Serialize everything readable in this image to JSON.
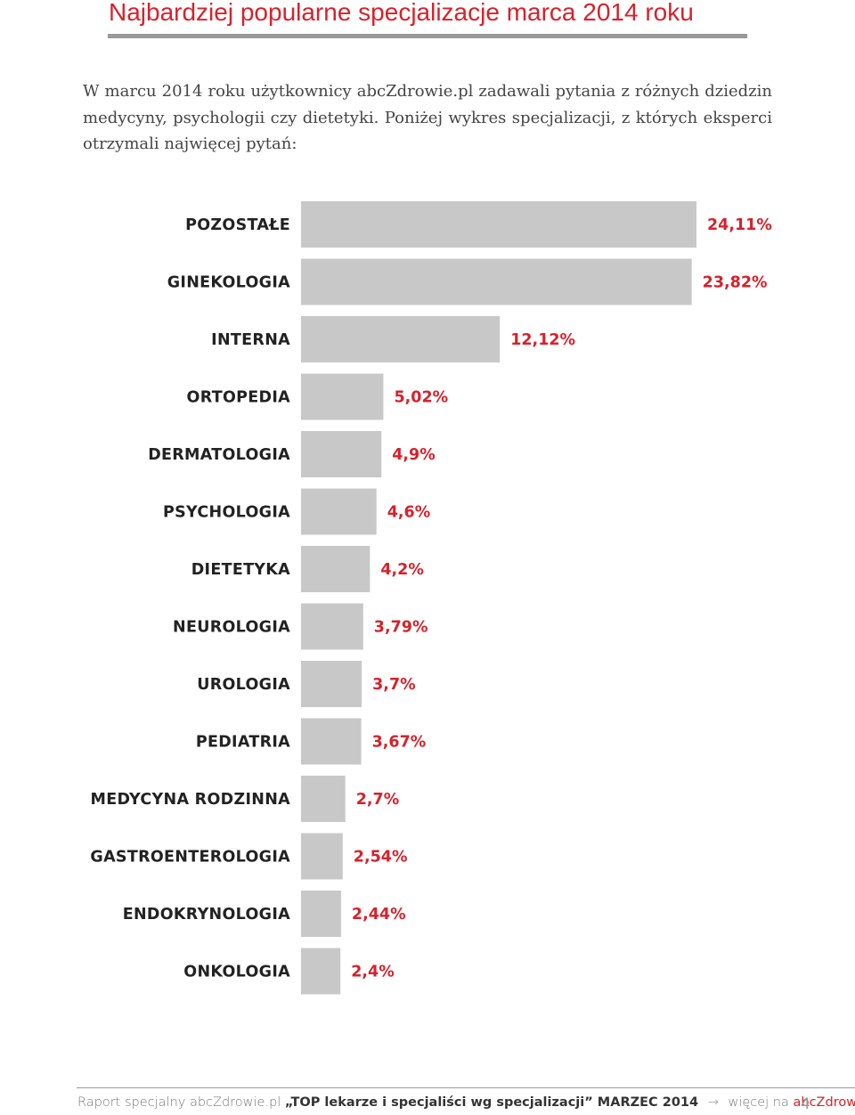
{
  "header": {
    "title": "Najbardziej popularne specjalizacje marca 2014 roku",
    "intro": "W marcu 2014 roku użytkownicy abcZdrowie.pl zadawali pytania z różnych dziedzin medycyny, psychologii czy dietetyki. Poniżej wykres specjalizacji, z których eksperci otrzymali najwięcej pytań:"
  },
  "colors": {
    "accent": "#d8212b",
    "bar": "#c8c8c8",
    "rule": "#999999"
  },
  "chart_data": {
    "type": "bar",
    "orientation": "horizontal",
    "title": "",
    "xlabel": "",
    "ylabel": "",
    "categories": [
      "POZOSTAŁE",
      "GINEKOLOGIA",
      "INTERNA",
      "ORTOPEDIA",
      "DERMATOLOGIA",
      "PSYCHOLOGIA",
      "DIETETYKA",
      "NEUROLOGIA",
      "UROLOGIA",
      "PEDIATRIA",
      "MEDYCYNA RODZINNA",
      "GASTROENTEROLOGIA",
      "ENDOKRYNOLOGIA",
      "ONKOLOGIA"
    ],
    "values": [
      24.11,
      23.82,
      12.12,
      5.02,
      4.9,
      4.6,
      4.2,
      3.79,
      3.7,
      3.67,
      2.7,
      2.54,
      2.44,
      2.4
    ],
    "value_labels": [
      "24,11%",
      "23,82%",
      "12,12%",
      "5,02%",
      "4,9%",
      "4,6%",
      "4,2%",
      "3,79%",
      "3,7%",
      "3,67%",
      "2,7%",
      "2,54%",
      "2,44%",
      "2,4%"
    ],
    "xlim": [
      0,
      24.11
    ],
    "grid": false,
    "legend": "none"
  },
  "footer": {
    "report": "Raport specjalny abcZdrowie.pl",
    "quote": "„TOP lekarze i specjaliści wg specjalizacji” MARZEC 2014",
    "arrow_icon": "arrow-right-icon",
    "more": "więcej na",
    "site": "abcZdrowie.pl",
    "page": "4"
  }
}
